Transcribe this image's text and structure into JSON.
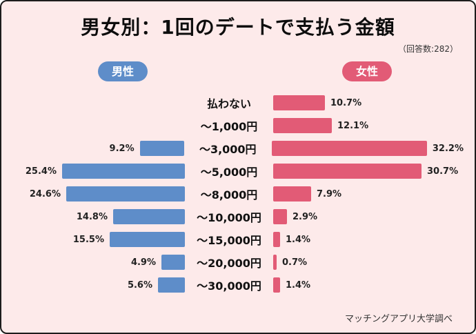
{
  "header": {
    "title": "男女別：1回のデートで支払う金額",
    "respondents": "（回答数:282）"
  },
  "legend": {
    "male_label": "男性",
    "female_label": "女性"
  },
  "footer": {
    "source": "マッチングアプリ大学調べ"
  },
  "colors": {
    "male": "#5e8dc9",
    "female": "#e25b76",
    "background": "#fdeaea",
    "border": "#1c1c1c"
  },
  "chart_data": {
    "type": "bar",
    "orientation": "horizontal-diverging",
    "title": "男女別：1回のデートで支払う金額",
    "subtitle": "（回答数:282）",
    "categories": [
      "払わない",
      "～1,000円",
      "～3,000円",
      "～5,000円",
      "～8,000円",
      "～10,000円",
      "～15,000円",
      "～20,000円",
      "～30,000円"
    ],
    "series": [
      {
        "name": "男性",
        "side": "left",
        "color": "#5e8dc9",
        "values": [
          null,
          null,
          9.2,
          25.4,
          24.6,
          14.8,
          15.5,
          4.9,
          5.6
        ]
      },
      {
        "name": "女性",
        "side": "right",
        "color": "#e25b76",
        "values": [
          10.7,
          12.1,
          32.2,
          30.7,
          7.9,
          2.9,
          1.4,
          0.7,
          1.4
        ]
      }
    ],
    "value_suffix": "%",
    "xmax": 33,
    "grid": false,
    "legend_position": "top",
    "source_note": "マッチングアプリ大学調べ"
  }
}
